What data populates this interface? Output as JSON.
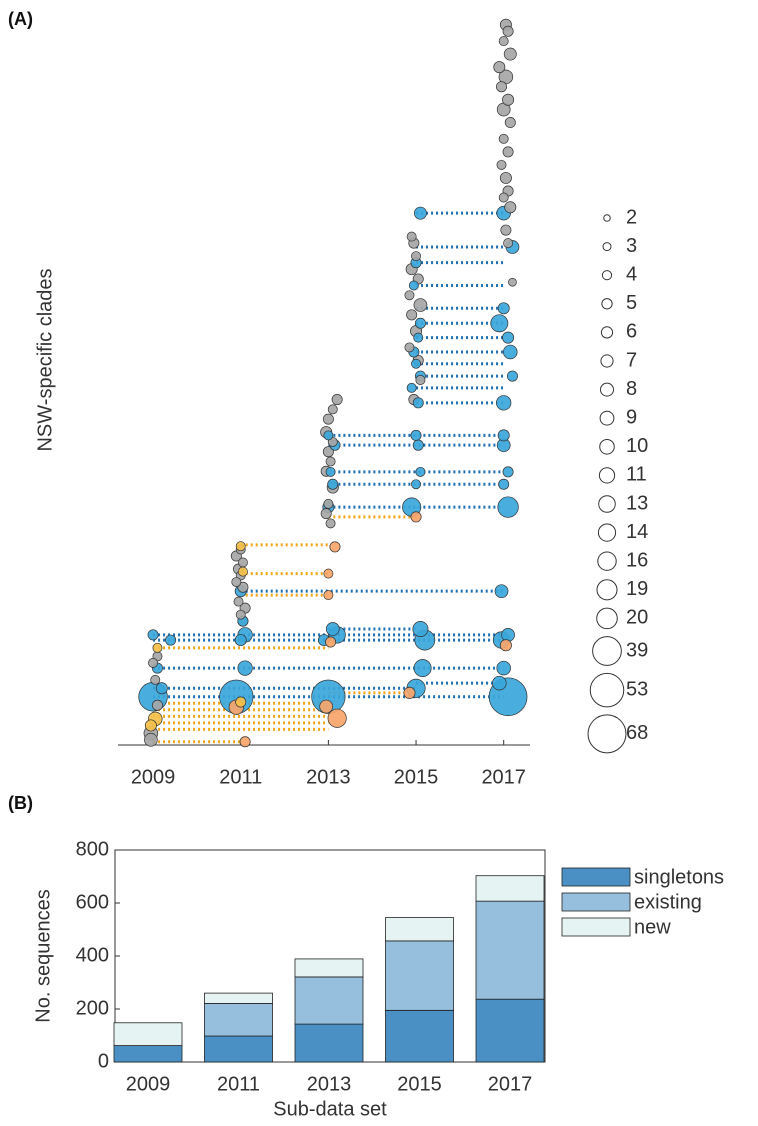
{
  "chart_data": [
    {
      "type": "bubble",
      "panel_label": "(A)",
      "ylabel": "NSW-specific clades",
      "xlim": [
        2008.2,
        2017.6
      ],
      "xticks": [
        2009,
        2011,
        2013,
        2015,
        2017
      ],
      "ylim": [
        0,
        112
      ],
      "size_legend": [
        2,
        3,
        4,
        5,
        6,
        7,
        8,
        9,
        10,
        11,
        13,
        14,
        16,
        19,
        20,
        39,
        53,
        68
      ],
      "series": [
        {
          "color": "#a6a6a6",
          "x": [
            2017.05,
            2017.1,
            2017.0,
            2017.15,
            2016.9,
            2017.05,
            2016.95,
            2017.1,
            2017.0,
            2017.15,
            2017.0,
            2017.1,
            2016.95,
            2017.05,
            2017.1,
            2017.0,
            2017.15,
            2017.05,
            2017.1,
            2017.2,
            2014.9,
            2014.95,
            2015.0,
            2014.9,
            2015.05,
            2014.85,
            2015.1,
            2014.9,
            2015.0,
            2014.85,
            2015.05,
            2015.1,
            2014.95,
            2013.2,
            2013.1,
            2013.0,
            2012.95,
            2013.1,
            2013.0,
            2013.05,
            2012.95,
            2013.1,
            2013.0,
            2012.95,
            2013.05,
            2011.0,
            2010.9,
            2011.05,
            2010.95,
            2011.0,
            2010.9,
            2011.05,
            2010.95,
            2011.1,
            2011.0,
            2011.05,
            2009.1,
            2009.0,
            2009.05,
            2009.1,
            2008.95,
            2008.95
          ],
          "y": [
            110.5,
            109.5,
            108,
            106,
            104,
            102.5,
            101,
            99,
            97.5,
            95.5,
            93,
            91,
            89,
            87,
            85,
            84,
            82.5,
            79,
            77,
            71,
            78,
            77,
            75,
            73,
            71.5,
            69,
            67.5,
            66,
            63.5,
            61,
            59,
            56,
            53,
            53,
            51.5,
            50,
            48,
            46.5,
            45,
            43.5,
            42,
            39.5,
            37,
            35.5,
            34,
            30,
            29,
            28,
            27,
            26,
            25,
            24.2,
            22,
            21,
            20,
            19,
            13.6,
            12.6,
            10,
            6.1,
            1.8,
            0.8
          ],
          "sizes": [
            6,
            5,
            4,
            7,
            6,
            9,
            5,
            6,
            8,
            5,
            4,
            5,
            4,
            6,
            5,
            4,
            6,
            5,
            4,
            3,
            4,
            5,
            4,
            6,
            5,
            4,
            8,
            5,
            6,
            4,
            5,
            4,
            5,
            5,
            4,
            5,
            6,
            4,
            5,
            4,
            5,
            6,
            4,
            5,
            4,
            4,
            5,
            4,
            5,
            4,
            4,
            5,
            4,
            5,
            4,
            5,
            4,
            4,
            4,
            5,
            9,
            8
          ]
        },
        {
          "color": "#3aa6da",
          "x": [
            2015.1,
            2017.0,
            2017.2,
            2015.0,
            2014.95,
            2017.0,
            2015.1,
            2016.9,
            2015.05,
            2017.1,
            2014.95,
            2017.15,
            2015.0,
            2015.1,
            2017.2,
            2014.9,
            2015.05,
            2017.0,
            2013.0,
            2015.0,
            2017.0,
            2013.15,
            2015.05,
            2017.0,
            2013.05,
            2015.1,
            2017.1,
            2013.1,
            2015.0,
            2017.0,
            2013.0,
            2014.9,
            2017.1,
            2011.0,
            2016.95,
            2011.05,
            2013.1,
            2015.1,
            2009.0,
            2011.1,
            2013.2,
            2017.1,
            2009.4,
            2011.0,
            2012.9,
            2015.2,
            2016.95,
            2009.1,
            2011.1,
            2015.15,
            2017.0,
            2016.9,
            2009.2,
            2015.0,
            2009.0,
            2010.9,
            2013.0,
            2017.1
          ],
          "y": [
            81.6,
            81.6,
            76.4,
            74,
            70.5,
            67,
            64.7,
            64.7,
            62.5,
            62.5,
            60.3,
            60.3,
            58.5,
            56.6,
            56.6,
            54.8,
            52.5,
            52.5,
            47.5,
            47.5,
            47.5,
            46,
            46,
            46,
            41.9,
            41.9,
            41.9,
            40,
            40,
            40,
            36.5,
            36.5,
            36.5,
            23.6,
            23.6,
            19,
            17.8,
            17.8,
            16.9,
            16.9,
            16.9,
            16.9,
            16.1,
            16.1,
            16.1,
            16.1,
            16.1,
            11.8,
            11.8,
            11.8,
            11.8,
            9.5,
            8.7,
            8.7,
            7.4,
            7.4,
            7.4,
            7.4
          ],
          "sizes": [
            7,
            9,
            8,
            5,
            4,
            6,
            5,
            14,
            4,
            6,
            5,
            9,
            4,
            5,
            5,
            4,
            5,
            10,
            4,
            5,
            6,
            5,
            5,
            8,
            4,
            4,
            5,
            5,
            4,
            5,
            6,
            16,
            20,
            6,
            8,
            5,
            8,
            11,
            5,
            10,
            13,
            8,
            5,
            6,
            6,
            19,
            13,
            5,
            10,
            14,
            9,
            9,
            6,
            16,
            39,
            53,
            53,
            68
          ]
        },
        {
          "color": "#f8a56a",
          "x": [
            2015.0,
            2013.15,
            2013.0,
            2013.0,
            2013.05,
            2014.85,
            2010.9,
            2013.2,
            2012.95,
            2011.1,
            2017.05
          ],
          "y": [
            35,
            30.4,
            26.3,
            23,
            15.8,
            8,
            5.8,
            4.1,
            5.9,
            0.5,
            15.3
          ],
          "sizes": [
            5,
            5,
            4,
            4,
            5,
            6,
            10,
            16,
            8,
            5,
            6
          ]
        },
        {
          "color": "#f4c04a",
          "x": [
            2011.0,
            2009.1,
            2009.05,
            2008.95,
            2011.05,
            2011.0
          ],
          "y": [
            30.5,
            14.9,
            4,
            3,
            26.6,
            6.6
          ],
          "sizes": [
            4,
            4,
            9,
            6,
            4,
            5
          ]
        }
      ],
      "links": [
        {
          "y": 81.6,
          "x": [
            2015,
            2017
          ],
          "color": "#1f6fb4"
        },
        {
          "y": 76.4,
          "x": [
            2015,
            2017
          ],
          "color": "#1f6fb4"
        },
        {
          "y": 74,
          "x": [
            2015,
            2017
          ],
          "color": "#1f6fb4"
        },
        {
          "y": 70.5,
          "x": [
            2015,
            2017
          ],
          "color": "#1f6fb4"
        },
        {
          "y": 67,
          "x": [
            2015,
            2017
          ],
          "color": "#1f6fb4"
        },
        {
          "y": 64.7,
          "x": [
            2015,
            2017
          ],
          "color": "#1f6fb4"
        },
        {
          "y": 62.5,
          "x": [
            2015,
            2017
          ],
          "color": "#1f6fb4"
        },
        {
          "y": 60.3,
          "x": [
            2015,
            2017
          ],
          "color": "#1f6fb4"
        },
        {
          "y": 58.5,
          "x": [
            2015,
            2017
          ],
          "color": "#1f6fb4"
        },
        {
          "y": 56.6,
          "x": [
            2015,
            2017
          ],
          "color": "#1f6fb4"
        },
        {
          "y": 54.8,
          "x": [
            2015,
            2017
          ],
          "color": "#1f6fb4"
        },
        {
          "y": 52.5,
          "x": [
            2015,
            2017
          ],
          "color": "#1f6fb4"
        },
        {
          "y": 47.5,
          "x": [
            2013,
            2017
          ],
          "color": "#1f6fb4"
        },
        {
          "y": 46,
          "x": [
            2013,
            2017
          ],
          "color": "#1f6fb4"
        },
        {
          "y": 41.9,
          "x": [
            2013,
            2017
          ],
          "color": "#1f6fb4"
        },
        {
          "y": 40,
          "x": [
            2013,
            2017
          ],
          "color": "#1f6fb4"
        },
        {
          "y": 36.5,
          "x": [
            2013,
            2017
          ],
          "color": "#1f6fb4"
        },
        {
          "y": 23.6,
          "x": [
            2011,
            2017
          ],
          "color": "#1f6fb4"
        },
        {
          "y": 17.8,
          "x": [
            2013,
            2015
          ],
          "color": "#1f6fb4"
        },
        {
          "y": 16.9,
          "x": [
            2009,
            2017
          ],
          "color": "#1f6fb4"
        },
        {
          "y": 16.1,
          "x": [
            2009,
            2017
          ],
          "color": "#1f6fb4"
        },
        {
          "y": 11.8,
          "x": [
            2009,
            2017
          ],
          "color": "#1f6fb4"
        },
        {
          "y": 9.5,
          "x": [
            2015,
            2017
          ],
          "color": "#1f6fb4"
        },
        {
          "y": 8.7,
          "x": [
            2009,
            2015
          ],
          "color": "#1f6fb4"
        },
        {
          "y": 7.4,
          "x": [
            2009,
            2017
          ],
          "color": "#1f6fb4"
        },
        {
          "y": 35,
          "x": [
            2013,
            2015
          ],
          "color": "#f2a516"
        },
        {
          "y": 30.7,
          "x": [
            2011,
            2013
          ],
          "color": "#f2a516"
        },
        {
          "y": 26.3,
          "x": [
            2011,
            2013
          ],
          "color": "#f2a516"
        },
        {
          "y": 23,
          "x": [
            2011,
            2013
          ],
          "color": "#f2a516"
        },
        {
          "y": 14.9,
          "x": [
            2009,
            2013
          ],
          "color": "#f2a516"
        },
        {
          "y": 8,
          "x": [
            2013,
            2015
          ],
          "color": "#f2a516"
        },
        {
          "y": 6.4,
          "x": [
            2009,
            2013
          ],
          "color": "#f2a516"
        },
        {
          "y": 5.4,
          "x": [
            2009,
            2013
          ],
          "color": "#f2a516"
        },
        {
          "y": 4.4,
          "x": [
            2009,
            2013
          ],
          "color": "#f2a516"
        },
        {
          "y": 3.4,
          "x": [
            2009,
            2013
          ],
          "color": "#f2a516"
        },
        {
          "y": 2.4,
          "x": [
            2009,
            2013
          ],
          "color": "#f2a516"
        },
        {
          "y": 0.5,
          "x": [
            2009,
            2011
          ],
          "color": "#f2a516"
        }
      ]
    },
    {
      "type": "bar",
      "stacked": true,
      "panel_label": "(B)",
      "xlabel": "Sub-data set",
      "ylabel": "No. sequences",
      "categories": [
        "2009",
        "2011",
        "2013",
        "2015",
        "2017"
      ],
      "ylim": [
        0,
        800
      ],
      "yticks": [
        0,
        200,
        400,
        600,
        800
      ],
      "series": [
        {
          "name": "singletons",
          "color": "#4a90c4",
          "values": [
            62,
            98,
            143,
            195,
            237
          ]
        },
        {
          "name": "existing",
          "color": "#95bfdc",
          "values": [
            0,
            123,
            178,
            262,
            370
          ]
        },
        {
          "name": "new",
          "color": "#e6f3f3",
          "values": [
            86,
            39,
            68,
            88,
            96
          ]
        }
      ]
    }
  ]
}
